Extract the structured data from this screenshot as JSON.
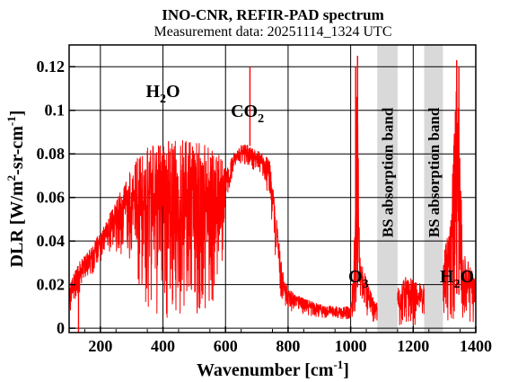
{
  "chart_data": {
    "type": "line",
    "title": "INO-CNR, REFIR-PAD spectrum",
    "subtitle": "Measurement data: 20251114_1324 UTC",
    "xlabel": {
      "main": "Wavenumber [cm",
      "sup": "-1",
      "tail": "]"
    },
    "ylabel": {
      "a": "DLR [W/m",
      "sup1": "2",
      "b": "-sr-cm",
      "sup2": "-1",
      "c": "]"
    },
    "xlim": [
      100,
      1400
    ],
    "ylim": [
      -0.002,
      0.13
    ],
    "x_ticks": [
      200,
      400,
      600,
      800,
      1000,
      1200,
      1400
    ],
    "x_tick_labels": [
      "200",
      "400",
      "600",
      "800",
      "1000",
      "1200",
      "1400"
    ],
    "y_ticks": [
      0,
      0.02,
      0.04,
      0.06,
      0.08,
      0.1,
      0.12
    ],
    "y_tick_labels": [
      "0",
      "0.02",
      "0.04",
      "0.06",
      "0.08",
      "0.1",
      "0.12"
    ],
    "grid": true,
    "series_color": "#ff0000",
    "band_color": "#d9d9d9",
    "bands": [
      {
        "label": "BS absorption band",
        "x_range": [
          1085,
          1150
        ]
      },
      {
        "label": "BS absorption band",
        "x_range": [
          1235,
          1295
        ]
      }
    ],
    "annotations": [
      {
        "id": "h2o-left",
        "main": "H",
        "sub": "2",
        "tail": "O",
        "x": 400,
        "y": 0.106
      },
      {
        "id": "co2",
        "main": "CO",
        "sub": "2",
        "tail": "",
        "x": 670,
        "y": 0.097
      },
      {
        "id": "o3",
        "main": "O",
        "sub": "3",
        "tail": "",
        "x": 1025,
        "y": 0.021
      },
      {
        "id": "h2o-right",
        "main": "H",
        "sub": "2",
        "tail": "O",
        "x": 1340,
        "y": 0.021
      }
    ],
    "envelope": {
      "x": [
        100,
        120,
        140,
        160,
        200,
        250,
        300,
        330,
        360,
        400,
        440,
        480,
        500,
        530,
        560,
        590,
        600,
        630,
        660,
        700,
        720,
        740,
        760,
        780,
        800,
        850,
        900,
        950,
        1000,
        1010,
        1020,
        1030,
        1040,
        1060,
        1080,
        1085,
        1150,
        1180,
        1200,
        1235,
        1295,
        1320,
        1340,
        1360,
        1380,
        1400
      ],
      "top": [
        0.019,
        0.028,
        0.032,
        0.035,
        0.045,
        0.058,
        0.075,
        0.082,
        0.084,
        0.085,
        0.087,
        0.087,
        0.087,
        0.086,
        0.084,
        0.079,
        0.072,
        0.082,
        0.085,
        0.082,
        0.08,
        0.078,
        0.055,
        0.028,
        0.018,
        0.014,
        0.011,
        0.01,
        0.01,
        0.03,
        0.12,
        0.034,
        0.028,
        0.018,
        0.012,
        0.012,
        0.018,
        0.025,
        0.022,
        0.02,
        0.032,
        0.05,
        0.123,
        0.035,
        0.03,
        0.025
      ],
      "bottom": [
        0.005,
        0.012,
        0.018,
        0.022,
        0.03,
        0.035,
        0.03,
        0.016,
        0.008,
        0.005,
        0.004,
        0.004,
        0.006,
        0.008,
        0.012,
        0.03,
        0.055,
        0.074,
        0.075,
        0.072,
        0.068,
        0.06,
        0.03,
        0.012,
        0.008,
        0.006,
        0.005,
        0.004,
        0.004,
        0.006,
        0.008,
        0.012,
        0.008,
        0.004,
        0.002,
        0.002,
        0.0,
        0.002,
        0.001,
        0.001,
        0.004,
        0.003,
        0.006,
        0.004,
        0.002,
        0.001
      ]
    },
    "spikes": [
      {
        "x": 130,
        "y": -0.002
      },
      {
        "x": 678,
        "y": 0.12
      },
      {
        "x": 1016,
        "y": 0.12
      },
      {
        "x": 1022,
        "y": 0.125
      },
      {
        "x": 1339,
        "y": 0.123
      },
      {
        "x": 1346,
        "y": 0.12
      }
    ]
  }
}
